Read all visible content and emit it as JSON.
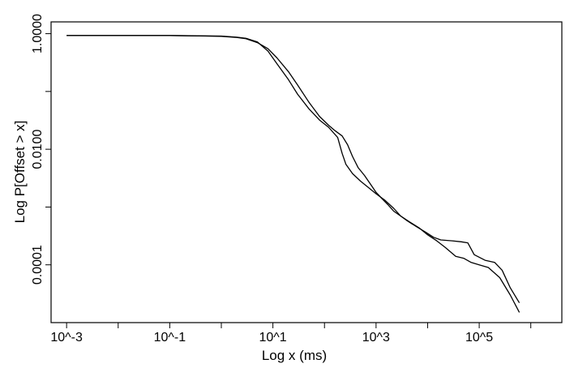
{
  "chart_data": {
    "type": "line",
    "xlabel": "Log x (ms)",
    "ylabel": "Log P[Offset > x]",
    "x_scale": "log",
    "y_scale": "log",
    "xlim": [
      0.0005,
      4000000
    ],
    "ylim": [
      1e-05,
      1.6
    ],
    "x_ticks": [
      0.001,
      0.01,
      0.1,
      1,
      10,
      100,
      1000,
      10000,
      100000,
      1000000
    ],
    "x_tick_labels": [
      {
        "value": 0.001,
        "label": "10^-3"
      },
      {
        "value": 0.1,
        "label": "10^-1"
      },
      {
        "value": 10,
        "label": "10^1"
      },
      {
        "value": 1000,
        "label": "10^3"
      },
      {
        "value": 100000,
        "label": "10^5"
      }
    ],
    "y_ticks": [
      1,
      0.1,
      0.01,
      0.001,
      0.0001
    ],
    "y_tick_labels": [
      {
        "value": 1,
        "label": "1.0000"
      },
      {
        "value": 0.01,
        "label": "0.0100"
      },
      {
        "value": 0.0001,
        "label": "0.0001"
      }
    ],
    "grid": false,
    "legend": false,
    "series": [
      {
        "color": "#000000",
        "points": [
          [
            0.001,
            0.93
          ],
          [
            0.01,
            0.93
          ],
          [
            0.1,
            0.93
          ],
          [
            1,
            0.9
          ],
          [
            2,
            0.86
          ],
          [
            3,
            0.82
          ],
          [
            5,
            0.7
          ],
          [
            8,
            0.55
          ],
          [
            12,
            0.38
          ],
          [
            20,
            0.22
          ],
          [
            30,
            0.13
          ],
          [
            50,
            0.065
          ],
          [
            80,
            0.037
          ],
          [
            120,
            0.026
          ],
          [
            160,
            0.021
          ],
          [
            220,
            0.017
          ],
          [
            280,
            0.012
          ],
          [
            350,
            0.0075
          ],
          [
            450,
            0.0048
          ],
          [
            600,
            0.0035
          ],
          [
            800,
            0.0024
          ],
          [
            1000,
            0.0018
          ],
          [
            1300,
            0.0014
          ],
          [
            1700,
            0.0011
          ],
          [
            2200,
            0.00085
          ],
          [
            3000,
            0.0007
          ],
          [
            4000,
            0.00058
          ],
          [
            6000,
            0.00046
          ],
          [
            9000,
            0.00037
          ],
          [
            13000,
            0.0003
          ],
          [
            18000,
            0.00027
          ],
          [
            30000,
            0.00026
          ],
          [
            45000,
            0.00025
          ],
          [
            60000,
            0.00024
          ],
          [
            80000,
            0.00015
          ],
          [
            130000,
            0.00012
          ],
          [
            200000,
            0.00011
          ],
          [
            280000,
            8e-05
          ],
          [
            300000,
            7e-05
          ],
          [
            400000,
            4e-05
          ],
          [
            600000,
            2.2e-05
          ]
        ]
      },
      {
        "color": "#000000",
        "points": [
          [
            0.001,
            0.93
          ],
          [
            0.01,
            0.93
          ],
          [
            0.1,
            0.93
          ],
          [
            1,
            0.91
          ],
          [
            2,
            0.87
          ],
          [
            3,
            0.83
          ],
          [
            5,
            0.72
          ],
          [
            8,
            0.5
          ],
          [
            12,
            0.3
          ],
          [
            20,
            0.16
          ],
          [
            30,
            0.09
          ],
          [
            50,
            0.05
          ],
          [
            80,
            0.032
          ],
          [
            120,
            0.024
          ],
          [
            180,
            0.016
          ],
          [
            220,
            0.0085
          ],
          [
            260,
            0.0055
          ],
          [
            350,
            0.0038
          ],
          [
            500,
            0.0028
          ],
          [
            700,
            0.0022
          ],
          [
            1000,
            0.0017
          ],
          [
            1500,
            0.0013
          ],
          [
            2200,
            0.00095
          ],
          [
            3000,
            0.0007
          ],
          [
            4500,
            0.00055
          ],
          [
            7000,
            0.00043
          ],
          [
            10000,
            0.00033
          ],
          [
            15000,
            0.00026
          ],
          [
            22000,
            0.0002
          ],
          [
            35000,
            0.00014
          ],
          [
            50000,
            0.00013
          ],
          [
            70000,
            0.00011
          ],
          [
            100000,
            0.0001
          ],
          [
            150000,
            9e-05
          ],
          [
            250000,
            6e-05
          ],
          [
            400000,
            3e-05
          ],
          [
            600000,
            1.5e-05
          ]
        ]
      }
    ]
  }
}
